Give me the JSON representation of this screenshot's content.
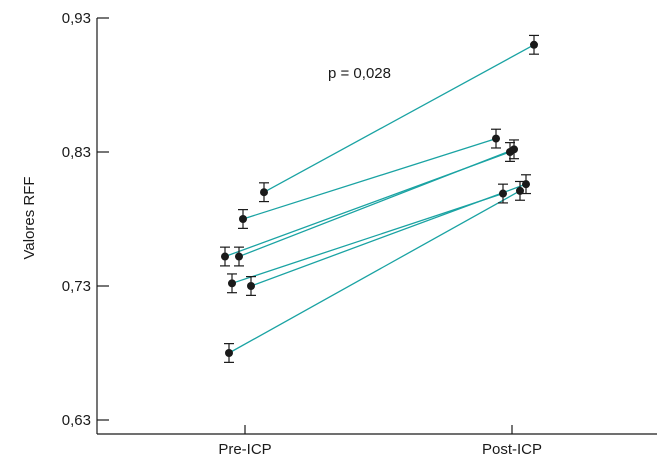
{
  "chart_data": {
    "type": "scatter",
    "title": "",
    "xlabel": "",
    "ylabel": "Valores RFF",
    "categories": [
      "Pre-ICP",
      "Post-ICP"
    ],
    "y_ticks": [
      "0,63",
      "0,73",
      "0,83",
      "0,93"
    ],
    "y_tick_values": [
      0.63,
      0.73,
      0.83,
      0.93
    ],
    "ylim": [
      0.63,
      0.93
    ],
    "grid": false,
    "annotation": "p = 0,028",
    "line_color": "#1aa3a3",
    "marker_color": "#1a1a1a",
    "error_bar": 0.007,
    "pairs": [
      {
        "pre": 0.8,
        "post": 0.91
      },
      {
        "pre": 0.78,
        "post": 0.84
      },
      {
        "pre": 0.752,
        "post": 0.83
      },
      {
        "pre": 0.752,
        "post": 0.832
      },
      {
        "pre": 0.732,
        "post": 0.799
      },
      {
        "pre": 0.73,
        "post": 0.806
      },
      {
        "pre": 0.68,
        "post": 0.801
      }
    ]
  }
}
